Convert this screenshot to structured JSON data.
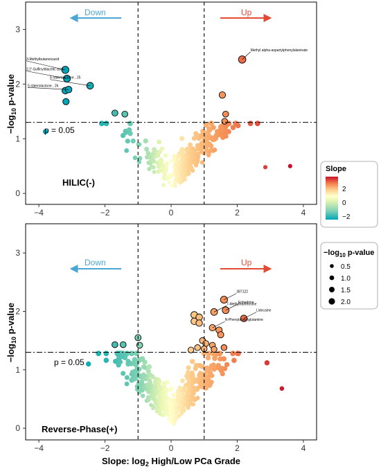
{
  "chart_data": {
    "type": "scatter",
    "xlabel_main": "Slope: log",
    "xlabel_sub": "2",
    "xlabel_rest": " High/Low PCa Grade",
    "ylabel_main": "−log",
    "ylabel_sub": "10",
    "ylabel_rest": " p-value",
    "xlim": [
      -4.4,
      4.4
    ],
    "xticks": [
      -4,
      -2,
      0,
      2,
      4
    ],
    "xtick_labels": [
      "−4",
      "−2",
      "0",
      "2",
      "4"
    ],
    "vlines": [
      -1,
      1
    ],
    "hline": 1.3,
    "threshold_label": "p = 0.05",
    "down_label": "Down",
    "up_label": "Up",
    "panels": [
      {
        "label": "HILIC(-)",
        "ylim": [
          -0.2,
          3.5
        ],
        "yticks": [
          0,
          1,
          2,
          3
        ],
        "highlighted": [
          {
            "x": -3.2,
            "y": 2.26,
            "label": "3-Methylbutanoicacid"
          },
          {
            "x": -3.15,
            "y": 2.1,
            "label": "2,2'-Sulfinyldiacetic acid"
          },
          {
            "x": -2.45,
            "y": 1.97,
            "label": "5-Valerolactone , 25"
          },
          {
            "x": -3.1,
            "y": 1.9,
            "label": "5-Valerolactone , 26"
          },
          {
            "x": 2.15,
            "y": 2.45,
            "label": "Methyl alpha-aspartylphenylalaninate"
          }
        ],
        "outlined_unlabeled": [
          {
            "x": -3.2,
            "y": 1.88
          },
          {
            "x": -3.18,
            "y": 1.68
          },
          {
            "x": -1.7,
            "y": 1.47
          },
          {
            "x": -1.4,
            "y": 1.45
          },
          {
            "x": 1.55,
            "y": 1.8
          },
          {
            "x": 1.65,
            "y": 1.45
          },
          {
            "x": 1.62,
            "y": 1.32
          }
        ],
        "extremes": [
          {
            "x": -3.8,
            "y": 1.13
          },
          {
            "x": 2.85,
            "y": 0.48
          },
          {
            "x": 3.6,
            "y": 0.5
          }
        ]
      },
      {
        "label": "Reverse-Phase(+)",
        "ylim": [
          -0.2,
          3.5
        ],
        "yticks": [
          0,
          1,
          2,
          3
        ],
        "highlighted": [
          {
            "x": 1.6,
            "y": 2.2,
            "label": "387122"
          },
          {
            "x": 1.65,
            "y": 2.02,
            "label": "Ephedrine"
          },
          {
            "x": 1.3,
            "y": 1.99,
            "label": "7-Methylxanthosine"
          },
          {
            "x": 2.2,
            "y": 1.88,
            "label": "Lidocaine"
          },
          {
            "x": 1.25,
            "y": 1.72,
            "label": "N-Phenylacetylglutamine"
          }
        ],
        "outlined_unlabeled": [
          {
            "x": -1.7,
            "y": 1.43
          },
          {
            "x": -1.45,
            "y": 1.43
          },
          {
            "x": -1.0,
            "y": 1.55
          },
          {
            "x": -0.95,
            "y": 1.42
          },
          {
            "x": 0.7,
            "y": 1.94
          },
          {
            "x": 0.7,
            "y": 1.83
          },
          {
            "x": 0.85,
            "y": 1.9
          },
          {
            "x": 0.85,
            "y": 1.8
          },
          {
            "x": 1.45,
            "y": 1.68
          },
          {
            "x": 1.5,
            "y": 1.6
          },
          {
            "x": 0.95,
            "y": 1.5
          },
          {
            "x": 1.05,
            "y": 1.45
          },
          {
            "x": 1.25,
            "y": 1.42
          },
          {
            "x": 0.8,
            "y": 1.38
          },
          {
            "x": 1.0,
            "y": 1.36
          },
          {
            "x": 1.3,
            "y": 1.35
          },
          {
            "x": 0.6,
            "y": 1.34
          },
          {
            "x": 1.6,
            "y": 1.38
          }
        ],
        "extremes": [
          {
            "x": 2.9,
            "y": 1.12
          },
          {
            "x": 3.35,
            "y": 0.68
          },
          {
            "x": -2.5,
            "y": 1.1
          }
        ]
      }
    ],
    "legend_slope": {
      "title": "Slope",
      "ticks": [
        "2",
        "0",
        "−2"
      ],
      "colors": [
        "#00a6ba",
        "#7fd1b3",
        "#e9f6b3",
        "#ffffcc",
        "#fdcc8a",
        "#f37a4a",
        "#c8102e"
      ]
    },
    "legend_size": {
      "title_main": "−log",
      "title_sub": "10",
      "title_rest": " p-value",
      "entries": [
        "0.5",
        "1.0",
        "1.5",
        "2.0"
      ]
    }
  }
}
